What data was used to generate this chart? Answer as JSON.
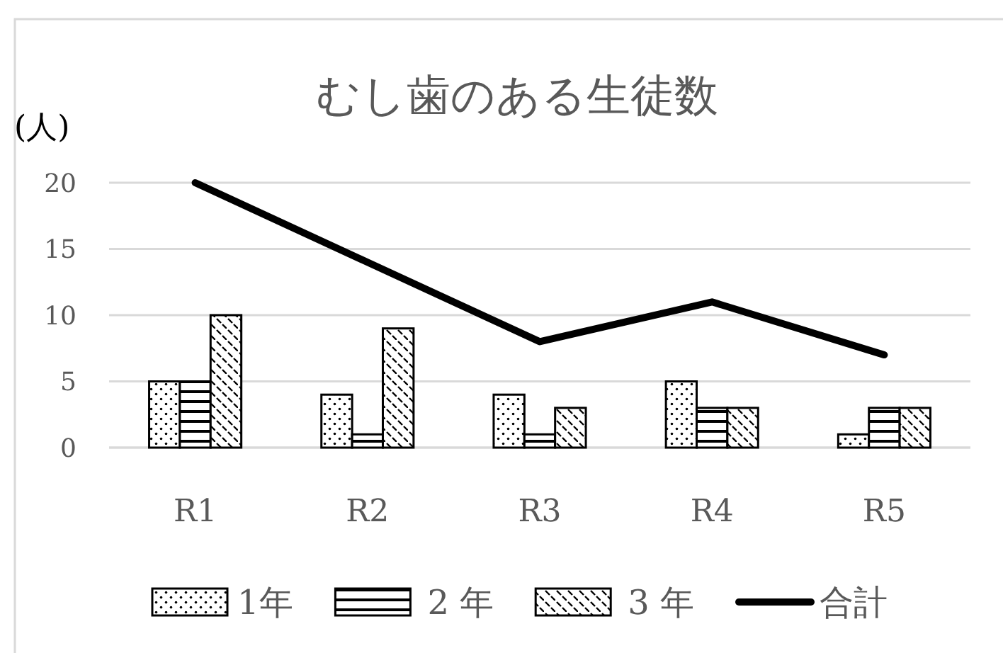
{
  "chart_data": {
    "type": "bar",
    "title": "むし歯のある生徒数",
    "ylabel": "(人)",
    "categories": [
      "R1",
      "R2",
      "R3",
      "R4",
      "R5"
    ],
    "series": [
      {
        "name": "1年",
        "color": "#000000",
        "values": [
          5,
          4,
          4,
          5,
          1
        ]
      },
      {
        "name": "2 年",
        "color": "#000000",
        "values": [
          5,
          1,
          1,
          3,
          3
        ]
      },
      {
        "name": "3 年",
        "color": "#000000",
        "values": [
          10,
          9,
          3,
          3,
          3
        ]
      },
      {
        "name": "合計",
        "type": "line",
        "color": "#000000",
        "values": [
          20,
          14,
          8,
          11,
          7
        ]
      }
    ],
    "ylim": [
      0,
      20
    ],
    "yticks": [
      0,
      5,
      10,
      15,
      20
    ],
    "grid": "y",
    "legend": "bottom",
    "marker": "none",
    "line_style": "solid"
  }
}
